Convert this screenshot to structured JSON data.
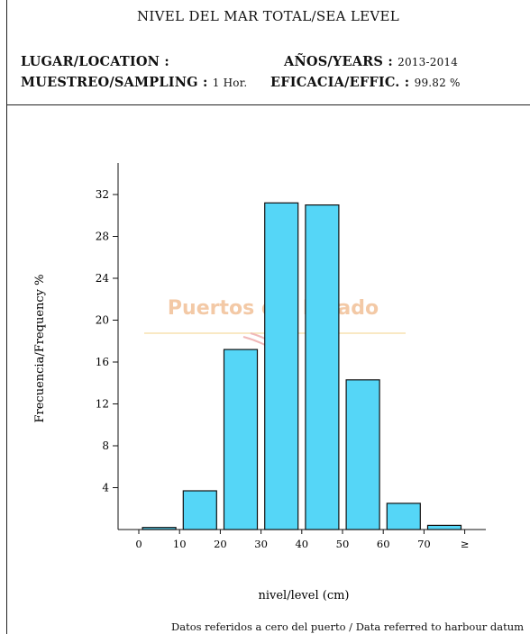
{
  "header": {
    "title": "NIVEL DEL MAR TOTAL/SEA LEVEL",
    "location_label": "LUGAR/LOCATION :",
    "location_value": "",
    "years_label": "AÑOS/YEARS :",
    "years_value": "2013-2014",
    "sampling_label": "MUESTREO/SAMPLING :",
    "sampling_value": "1 Hor.",
    "efficiency_label": "EFICACIA/EFFIC. :",
    "efficiency_value": "99.82 %"
  },
  "watermark": {
    "text": "Puertos del Estado"
  },
  "footnote": "Datos referidos a cero del puerto / Data referred to harbour datum",
  "colors": {
    "bar_fill": "#55d6f7",
    "bar_stroke": "#111111",
    "watermark_text": "#f3c9a6",
    "watermark_line": "#f7e2b0"
  },
  "chart_data": {
    "type": "bar",
    "title": "",
    "xlabel": "nivel/level (cm)",
    "ylabel": "Frecuencia/Frequency %",
    "x_tick_labels": [
      "0",
      "10",
      "20",
      "30",
      "40",
      "50",
      "60",
      "70",
      "≥"
    ],
    "bins": [
      "0-10",
      "10-20",
      "20-30",
      "30-40",
      "40-50",
      "50-60",
      "60-70",
      "≥70"
    ],
    "values": [
      0.2,
      3.7,
      17.2,
      31.2,
      31.0,
      14.3,
      2.5,
      0.4
    ],
    "ylim": [
      0,
      35
    ],
    "yticks": [
      4,
      8,
      12,
      16,
      20,
      24,
      28,
      32
    ],
    "grid": false,
    "legend": "none"
  }
}
